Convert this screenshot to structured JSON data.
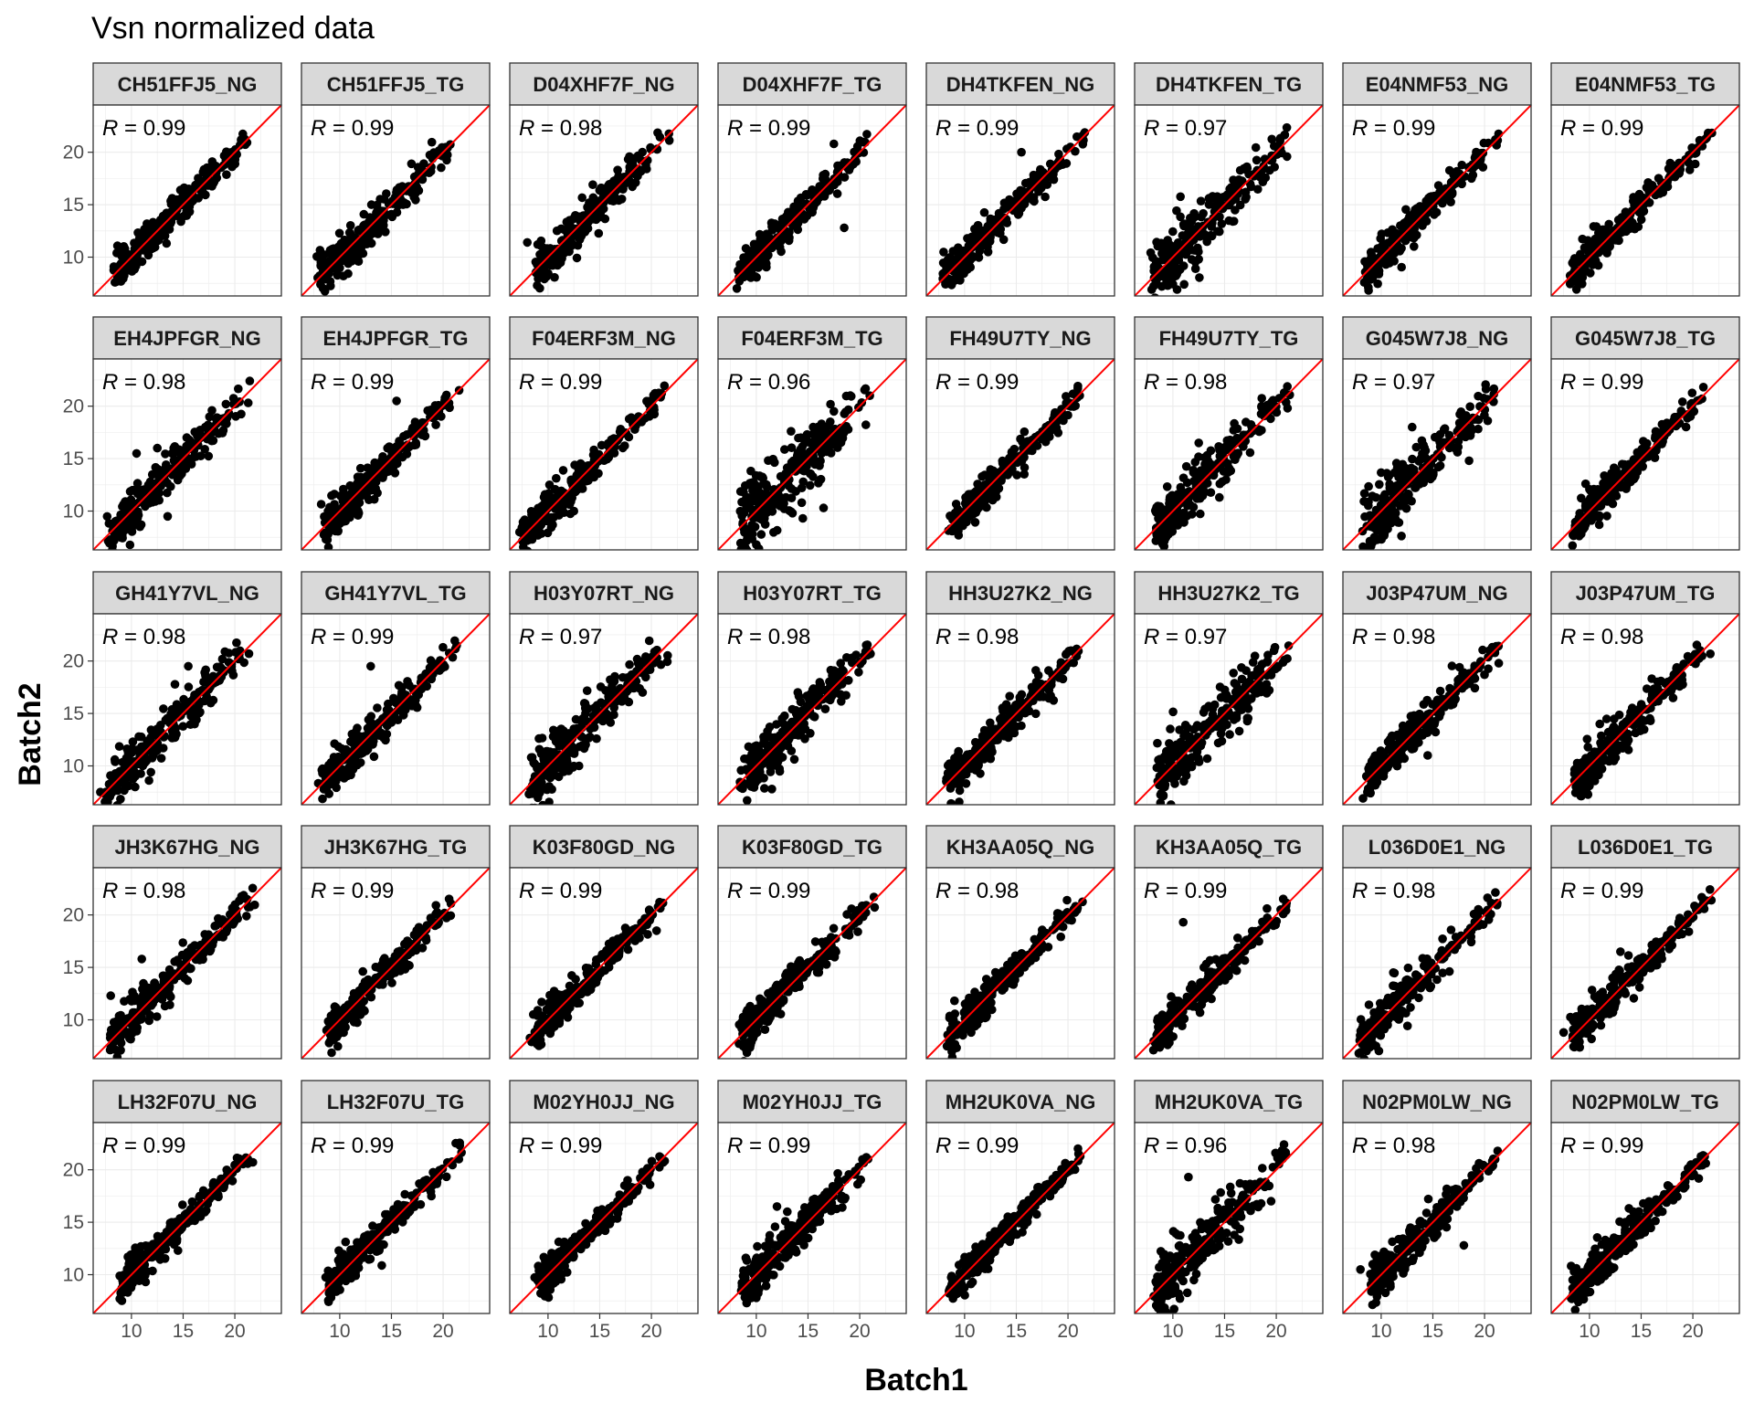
{
  "chart_data": {
    "type": "scatter",
    "title": "Vsn normalized data",
    "xlabel": "Batch1",
    "ylabel": "Batch2",
    "xlim": [
      6.3,
      24.5
    ],
    "ylim": [
      6.3,
      24.5
    ],
    "xticks": [
      10,
      15,
      20
    ],
    "yticks": [
      10,
      15,
      20
    ],
    "grid": true,
    "reference_line": {
      "slope": 1,
      "intercept": 0,
      "color": "#ff0000"
    },
    "point_color": "#000000",
    "stat_label_prefix": "R",
    "facets": [
      {
        "name": "CH51FFJ5_NG",
        "R": "0.99",
        "spread": 0.45,
        "min": 8.5,
        "max": 23.5,
        "outliers": []
      },
      {
        "name": "CH51FFJ5_TG",
        "R": "0.99",
        "spread": 0.55,
        "min": 8.0,
        "max": 22.8,
        "outliers": []
      },
      {
        "name": "D04XHF7F_NG",
        "R": "0.98",
        "spread": 0.55,
        "min": 8.8,
        "max": 23.5,
        "outliers": [
          [
            8.0,
            11.4
          ],
          [
            9.0,
            11.2
          ]
        ]
      },
      {
        "name": "D04XHF7F_TG",
        "R": "0.99",
        "spread": 0.45,
        "min": 8.3,
        "max": 22.8,
        "outliers": [
          [
            17.5,
            20.8
          ],
          [
            18.5,
            12.8
          ],
          [
            15.5,
            14.7
          ]
        ]
      },
      {
        "name": "DH4TKFEN_NG",
        "R": "0.99",
        "spread": 0.5,
        "min": 8.0,
        "max": 23.8,
        "outliers": [
          [
            15.5,
            20.0
          ]
        ]
      },
      {
        "name": "DH4TKFEN_TG",
        "R": "0.97",
        "spread": 0.8,
        "min": 8.0,
        "max": 23.3,
        "outliers": [
          [
            12.5,
            9.8
          ]
        ]
      },
      {
        "name": "E04NMF53_NG",
        "R": "0.99",
        "spread": 0.45,
        "min": 8.5,
        "max": 23.3,
        "outliers": []
      },
      {
        "name": "E04NMF53_TG",
        "R": "0.99",
        "spread": 0.45,
        "min": 8.3,
        "max": 23.8,
        "outliers": []
      },
      {
        "name": "EH4JPFGR_NG",
        "R": "0.98",
        "spread": 0.55,
        "min": 7.8,
        "max": 23.3,
        "outliers": [
          [
            10.5,
            15.5
          ],
          [
            13.5,
            9.5
          ],
          [
            12.5,
            16.0
          ]
        ]
      },
      {
        "name": "EH4JPFGR_TG",
        "R": "0.99",
        "spread": 0.5,
        "min": 8.5,
        "max": 23.5,
        "outliers": [
          [
            15.5,
            20.5
          ]
        ]
      },
      {
        "name": "F04ERF3M_NG",
        "R": "0.99",
        "spread": 0.45,
        "min": 7.5,
        "max": 23.3,
        "outliers": [
          [
            12.5,
            10.0
          ]
        ]
      },
      {
        "name": "F04ERF3M_TG",
        "R": "0.96",
        "spread": 1.0,
        "min": 8.5,
        "max": 23.0,
        "outliers": [
          [
            15.5,
            18.0
          ],
          [
            17.5,
            17.5
          ],
          [
            14.5,
            9.3
          ],
          [
            16.5,
            10.3
          ],
          [
            13.5,
            9.8
          ]
        ]
      },
      {
        "name": "FH49U7TY_NG",
        "R": "0.99",
        "spread": 0.45,
        "min": 8.5,
        "max": 23.5,
        "outliers": []
      },
      {
        "name": "FH49U7TY_TG",
        "R": "0.98",
        "spread": 0.65,
        "min": 8.3,
        "max": 23.3,
        "outliers": [
          [
            12.5,
            16.5
          ],
          [
            14.5,
            11.3
          ]
        ]
      },
      {
        "name": "G045W7J8_NG",
        "R": "0.97",
        "spread": 0.9,
        "min": 8.3,
        "max": 23.0,
        "outliers": [
          [
            13.0,
            18.0
          ],
          [
            18.5,
            14.8
          ]
        ]
      },
      {
        "name": "G045W7J8_TG",
        "R": "0.99",
        "spread": 0.45,
        "min": 8.3,
        "max": 23.5,
        "outliers": []
      },
      {
        "name": "GH41Y7VL_NG",
        "R": "0.98",
        "spread": 0.6,
        "min": 7.5,
        "max": 23.5,
        "outliers": [
          [
            15.5,
            19.5
          ],
          [
            7.0,
            7.5
          ]
        ]
      },
      {
        "name": "GH41Y7VL_TG",
        "R": "0.99",
        "spread": 0.5,
        "min": 8.3,
        "max": 23.3,
        "outliers": [
          [
            13.0,
            19.5
          ]
        ]
      },
      {
        "name": "H03Y07RT_NG",
        "R": "0.97",
        "spread": 0.75,
        "min": 8.3,
        "max": 23.5,
        "outliers": [
          [
            10.5,
            12.8
          ],
          [
            13.0,
            10.0
          ]
        ]
      },
      {
        "name": "H03Y07RT_TG",
        "R": "0.98",
        "spread": 0.7,
        "min": 8.5,
        "max": 23.0,
        "outliers": [
          [
            11.5,
            7.8
          ],
          [
            12.5,
            14.5
          ]
        ]
      },
      {
        "name": "HH3U27K2_NG",
        "R": "0.98",
        "spread": 0.55,
        "min": 8.3,
        "max": 23.3,
        "outliers": []
      },
      {
        "name": "HH3U27K2_TG",
        "R": "0.97",
        "spread": 0.8,
        "min": 8.5,
        "max": 23.3,
        "outliers": [
          [
            15.5,
            13.0
          ]
        ]
      },
      {
        "name": "J03P47UM_NG",
        "R": "0.98",
        "spread": 0.5,
        "min": 8.5,
        "max": 23.3,
        "outliers": [
          [
            14.5,
            11.0
          ]
        ]
      },
      {
        "name": "J03P47UM_TG",
        "R": "0.98",
        "spread": 0.55,
        "min": 8.5,
        "max": 23.5,
        "outliers": [
          [
            11.0,
            14.0
          ]
        ]
      },
      {
        "name": "JH3K67HG_NG",
        "R": "0.98",
        "spread": 0.55,
        "min": 8.0,
        "max": 23.8,
        "outliers": [
          [
            8.0,
            12.3
          ],
          [
            11.0,
            15.8
          ],
          [
            9.0,
            7.8
          ]
        ]
      },
      {
        "name": "JH3K67HG_TG",
        "R": "0.99",
        "spread": 0.45,
        "min": 8.8,
        "max": 23.0,
        "outliers": []
      },
      {
        "name": "K03F80GD_NG",
        "R": "0.99",
        "spread": 0.45,
        "min": 8.5,
        "max": 23.3,
        "outliers": [
          [
            20.5,
            18.5
          ]
        ]
      },
      {
        "name": "K03F80GD_TG",
        "R": "0.99",
        "spread": 0.5,
        "min": 8.5,
        "max": 23.5,
        "outliers": []
      },
      {
        "name": "KH3AA05Q_NG",
        "R": "0.98",
        "spread": 0.5,
        "min": 8.5,
        "max": 23.3,
        "outliers": []
      },
      {
        "name": "KH3AA05Q_TG",
        "R": "0.99",
        "spread": 0.45,
        "min": 8.3,
        "max": 23.0,
        "outliers": [
          [
            11.0,
            19.3
          ],
          [
            13.0,
            15.0
          ]
        ]
      },
      {
        "name": "L036D0E1_NG",
        "R": "0.98",
        "spread": 0.55,
        "min": 8.0,
        "max": 23.5,
        "outliers": [
          [
            9.5,
            7.5
          ]
        ]
      },
      {
        "name": "L036D0E1_TG",
        "R": "0.99",
        "spread": 0.5,
        "min": 8.3,
        "max": 23.5,
        "outliers": [
          [
            7.5,
            8.8
          ],
          [
            13.0,
            16.5
          ]
        ]
      },
      {
        "name": "LH32F07U_NG",
        "R": "0.99",
        "spread": 0.45,
        "min": 9.0,
        "max": 24.0,
        "outliers": [
          [
            14.5,
            12.3
          ]
        ]
      },
      {
        "name": "LH32F07U_TG",
        "R": "0.99",
        "spread": 0.45,
        "min": 8.8,
        "max": 24.0,
        "outliers": []
      },
      {
        "name": "M02YH0JJ_NG",
        "R": "0.99",
        "spread": 0.45,
        "min": 9.0,
        "max": 23.0,
        "outliers": []
      },
      {
        "name": "M02YH0JJ_TG",
        "R": "0.99",
        "spread": 0.55,
        "min": 8.5,
        "max": 23.0,
        "outliers": [
          [
            10.0,
            7.8
          ],
          [
            12.0,
            16.5
          ],
          [
            13.0,
            16.0
          ]
        ]
      },
      {
        "name": "MH2UK0VA_NG",
        "R": "0.99",
        "spread": 0.4,
        "min": 8.5,
        "max": 23.0,
        "outliers": []
      },
      {
        "name": "MH2UK0VA_TG",
        "R": "0.96",
        "spread": 0.85,
        "min": 8.5,
        "max": 23.5,
        "outliers": [
          [
            11.5,
            19.3
          ],
          [
            19.5,
            17.0
          ],
          [
            9.5,
            8.0
          ]
        ]
      },
      {
        "name": "N02PM0LW_NG",
        "R": "0.98",
        "spread": 0.55,
        "min": 9.0,
        "max": 23.3,
        "outliers": [
          [
            8.0,
            10.5
          ],
          [
            18.0,
            12.8
          ]
        ]
      },
      {
        "name": "N02PM0LW_TG",
        "R": "0.99",
        "spread": 0.5,
        "min": 8.3,
        "max": 23.5,
        "outliers": []
      }
    ]
  }
}
